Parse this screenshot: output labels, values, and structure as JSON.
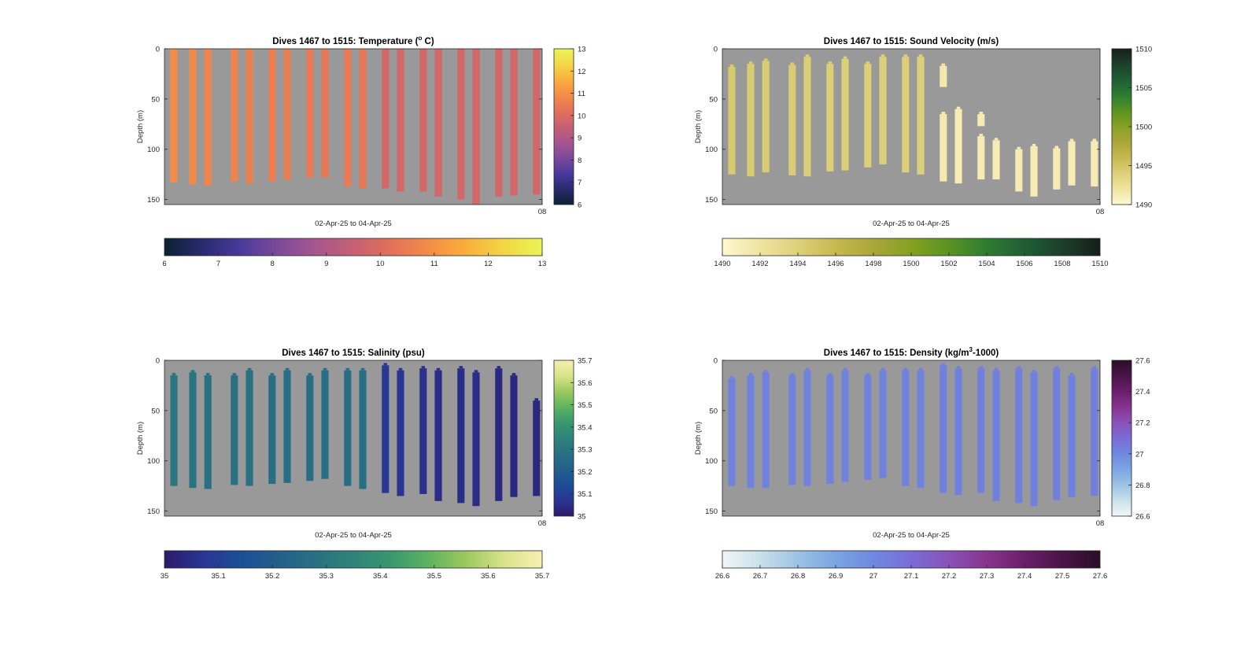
{
  "chart_data": [
    {
      "type": "heatmap",
      "title": "Dives 1467 to 1515: Temperature (",
      "title_sup": "o",
      "title_after": " C)",
      "xlabel": "02-Apr-25 to 04-Apr-25",
      "ylabel": "Depth (m)",
      "ylim": [
        0,
        155
      ],
      "yticks": [
        "0",
        "50",
        "100",
        "150"
      ],
      "xtick_label": "08",
      "clim": [
        6,
        13
      ],
      "colorbar_ticks": [
        "6",
        "7",
        "8",
        "9",
        "10",
        "11",
        "12",
        "13"
      ],
      "h_colorbar_ticks": [
        "6",
        "7",
        "8",
        "9",
        "10",
        "11",
        "12",
        "13"
      ],
      "colormap": [
        "#0b2233",
        "#2a2a6f",
        "#4a3a9c",
        "#7b4a9a",
        "#a8568f",
        "#c65f74",
        "#e3705a",
        "#f48c47",
        "#f9ae3c",
        "#f2d746",
        "#e9f457"
      ],
      "background": "#999999",
      "dives": [
        {
          "x": 0.025,
          "top": 0,
          "bottom": 133,
          "value": 10.9
        },
        {
          "x": 0.075,
          "top": 0,
          "bottom": 135,
          "value": 10.8
        },
        {
          "x": 0.115,
          "top": 0,
          "bottom": 136,
          "value": 10.75
        },
        {
          "x": 0.185,
          "top": 0,
          "bottom": 132,
          "value": 10.7
        },
        {
          "x": 0.225,
          "top": 0,
          "bottom": 134,
          "value": 10.6
        },
        {
          "x": 0.285,
          "top": 0,
          "bottom": 132,
          "value": 10.55
        },
        {
          "x": 0.325,
          "top": 0,
          "bottom": 130,
          "value": 10.5
        },
        {
          "x": 0.385,
          "top": 0,
          "bottom": 128,
          "value": 10.45
        },
        {
          "x": 0.425,
          "top": 0,
          "bottom": 128,
          "value": 10.4
        },
        {
          "x": 0.485,
          "top": 0,
          "bottom": 137,
          "value": 10.45
        },
        {
          "x": 0.525,
          "top": 0,
          "bottom": 139,
          "value": 10.4
        },
        {
          "x": 0.585,
          "top": 0,
          "bottom": 139,
          "value": 9.85
        },
        {
          "x": 0.625,
          "top": 0,
          "bottom": 142,
          "value": 9.85
        },
        {
          "x": 0.685,
          "top": 0,
          "bottom": 142,
          "value": 9.8
        },
        {
          "x": 0.725,
          "top": 0,
          "bottom": 147,
          "value": 9.8
        },
        {
          "x": 0.785,
          "top": 0,
          "bottom": 150,
          "value": 9.8
        },
        {
          "x": 0.825,
          "top": 0,
          "bottom": 155,
          "value": 9.8
        },
        {
          "x": 0.885,
          "top": 0,
          "bottom": 147,
          "value": 9.8
        },
        {
          "x": 0.925,
          "top": 0,
          "bottom": 146,
          "value": 9.8
        },
        {
          "x": 0.985,
          "top": 0,
          "bottom": 145,
          "value": 9.8
        }
      ]
    },
    {
      "type": "heatmap",
      "title": "Dives 1467 to 1515: Sound Velocity (m/s)",
      "xlabel": "02-Apr-25 to 04-Apr-25",
      "ylabel": "Depth (m)",
      "ylim": [
        0,
        155
      ],
      "yticks": [
        "0",
        "50",
        "100",
        "150"
      ],
      "xtick_label": "08",
      "clim": [
        1490,
        1510
      ],
      "colorbar_ticks": [
        "1490",
        "1495",
        "1500",
        "1505",
        "1510"
      ],
      "h_colorbar_ticks": [
        "1490",
        "1492",
        "1494",
        "1496",
        "1498",
        "1500",
        "1502",
        "1504",
        "1506",
        "1508",
        "1510"
      ],
      "colormap": [
        "#fdf8d2",
        "#efe39f",
        "#ddd07a",
        "#c8b84f",
        "#aaa63a",
        "#86a121",
        "#5a9322",
        "#2e7d32",
        "#1f5e34",
        "#1c402c",
        "#161f18"
      ],
      "background": "#999999",
      "dives": [
        {
          "x": 0.025,
          "top": 18,
          "bottom": 125,
          "value": 1494.5
        },
        {
          "x": 0.075,
          "top": 15,
          "bottom": 127,
          "value": 1494.4
        },
        {
          "x": 0.115,
          "top": 12,
          "bottom": 123,
          "value": 1494.4
        },
        {
          "x": 0.185,
          "top": 16,
          "bottom": 126,
          "value": 1494.3
        },
        {
          "x": 0.225,
          "top": 8,
          "bottom": 127,
          "value": 1494.2
        },
        {
          "x": 0.285,
          "top": 15,
          "bottom": 122,
          "value": 1494.2
        },
        {
          "x": 0.325,
          "top": 10,
          "bottom": 121,
          "value": 1494.1
        },
        {
          "x": 0.385,
          "top": 15,
          "bottom": 118,
          "value": 1494.1
        },
        {
          "x": 0.425,
          "top": 8,
          "bottom": 115,
          "value": 1494.0
        },
        {
          "x": 0.485,
          "top": 8,
          "bottom": 123,
          "value": 1494.1
        },
        {
          "x": 0.525,
          "top": 8,
          "bottom": 125,
          "value": 1494.0
        },
        {
          "x": 0.585,
          "top": 17,
          "bottom": 38,
          "value": 1491.5
        },
        {
          "x": 0.585,
          "top": 65,
          "bottom": 132,
          "value": 1491.3
        },
        {
          "x": 0.625,
          "top": 60,
          "bottom": 134,
          "value": 1491.2
        },
        {
          "x": 0.685,
          "top": 65,
          "bottom": 77,
          "value": 1491.2
        },
        {
          "x": 0.685,
          "top": 87,
          "bottom": 130,
          "value": 1491.2
        },
        {
          "x": 0.725,
          "top": 91,
          "bottom": 130,
          "value": 1491.2
        },
        {
          "x": 0.785,
          "top": 100,
          "bottom": 142,
          "value": 1491.2
        },
        {
          "x": 0.825,
          "top": 97,
          "bottom": 147,
          "value": 1491.2
        },
        {
          "x": 0.885,
          "top": 99,
          "bottom": 140,
          "value": 1491.2
        },
        {
          "x": 0.925,
          "top": 92,
          "bottom": 136,
          "value": 1491.2
        },
        {
          "x": 0.985,
          "top": 92,
          "bottom": 137,
          "value": 1491.2
        }
      ]
    },
    {
      "type": "heatmap",
      "title": "Dives 1467 to 1515: Salinity (psu)",
      "xlabel": "02-Apr-25 to 04-Apr-25",
      "ylabel": "Depth (m)",
      "ylim": [
        0,
        155
      ],
      "yticks": [
        "0",
        "50",
        "100",
        "150"
      ],
      "xtick_label": "08",
      "clim": [
        35,
        35.7
      ],
      "colorbar_ticks": [
        "35",
        "35.1",
        "35.2",
        "35.3",
        "35.4",
        "35.5",
        "35.6",
        "35.7"
      ],
      "h_colorbar_ticks": [
        "35",
        "35.1",
        "35.2",
        "35.3",
        "35.4",
        "35.5",
        "35.6",
        "35.7"
      ],
      "colormap": [
        "#2b1a6b",
        "#2a3593",
        "#1c4d96",
        "#245f8c",
        "#297083",
        "#2f837a",
        "#38986f",
        "#5eb361",
        "#9dc95e",
        "#d8e38a",
        "#f7efb0"
      ],
      "background": "#999999",
      "dives": [
        {
          "x": 0.025,
          "top": 15,
          "bottom": 125,
          "value": 35.3
        },
        {
          "x": 0.075,
          "top": 12,
          "bottom": 127,
          "value": 35.29
        },
        {
          "x": 0.115,
          "top": 15,
          "bottom": 128,
          "value": 35.28
        },
        {
          "x": 0.185,
          "top": 15,
          "bottom": 124,
          "value": 35.28
        },
        {
          "x": 0.225,
          "top": 10,
          "bottom": 125,
          "value": 35.28
        },
        {
          "x": 0.285,
          "top": 15,
          "bottom": 123,
          "value": 35.27
        },
        {
          "x": 0.325,
          "top": 10,
          "bottom": 122,
          "value": 35.27
        },
        {
          "x": 0.385,
          "top": 15,
          "bottom": 120,
          "value": 35.27
        },
        {
          "x": 0.425,
          "top": 10,
          "bottom": 118,
          "value": 35.27
        },
        {
          "x": 0.485,
          "top": 10,
          "bottom": 125,
          "value": 35.27
        },
        {
          "x": 0.525,
          "top": 10,
          "bottom": 128,
          "value": 35.27
        },
        {
          "x": 0.585,
          "top": 5,
          "bottom": 132,
          "value": 35.08
        },
        {
          "x": 0.625,
          "top": 10,
          "bottom": 135,
          "value": 35.07
        },
        {
          "x": 0.685,
          "top": 8,
          "bottom": 133,
          "value": 35.06
        },
        {
          "x": 0.725,
          "top": 10,
          "bottom": 140,
          "value": 35.05
        },
        {
          "x": 0.785,
          "top": 8,
          "bottom": 142,
          "value": 35.05
        },
        {
          "x": 0.825,
          "top": 12,
          "bottom": 145,
          "value": 35.05
        },
        {
          "x": 0.885,
          "top": 8,
          "bottom": 140,
          "value": 35.04
        },
        {
          "x": 0.925,
          "top": 15,
          "bottom": 136,
          "value": 35.04
        },
        {
          "x": 0.985,
          "top": 40,
          "bottom": 135,
          "value": 35.04
        }
      ]
    },
    {
      "type": "heatmap",
      "title": "Dives 1467 to 1515: Density (kg/m",
      "title_sup": "3",
      "title_after": "-1000)",
      "xlabel": "02-Apr-25 to 04-Apr-25",
      "ylabel": "Depth (m)",
      "ylim": [
        0,
        155
      ],
      "yticks": [
        "0",
        "50",
        "100",
        "150"
      ],
      "xtick_label": "08",
      "clim": [
        26.6,
        27.6
      ],
      "colorbar_ticks": [
        "26.6",
        "26.8",
        "27",
        "27.2",
        "27.4",
        "27.6"
      ],
      "h_colorbar_ticks": [
        "26.6",
        "26.7",
        "26.8",
        "26.9",
        "27",
        "27.1",
        "27.2",
        "27.3",
        "27.4",
        "27.5",
        "27.6"
      ],
      "colormap": [
        "#f0f6f7",
        "#c9e0ea",
        "#9cc3e4",
        "#7aa5e2",
        "#6f88e0",
        "#7a6cd7",
        "#8951b8",
        "#86348e",
        "#6b1f6a",
        "#4a1448",
        "#2a0e27"
      ],
      "background": "#999999",
      "dives": [
        {
          "x": 0.025,
          "top": 18,
          "bottom": 125,
          "value": 27.02
        },
        {
          "x": 0.075,
          "top": 15,
          "bottom": 127,
          "value": 27.02
        },
        {
          "x": 0.115,
          "top": 12,
          "bottom": 127,
          "value": 27.02
        },
        {
          "x": 0.185,
          "top": 15,
          "bottom": 124,
          "value": 27.02
        },
        {
          "x": 0.225,
          "top": 10,
          "bottom": 125,
          "value": 27.02
        },
        {
          "x": 0.285,
          "top": 15,
          "bottom": 123,
          "value": 27.02
        },
        {
          "x": 0.325,
          "top": 10,
          "bottom": 121,
          "value": 27.02
        },
        {
          "x": 0.385,
          "top": 15,
          "bottom": 119,
          "value": 27.02
        },
        {
          "x": 0.425,
          "top": 10,
          "bottom": 117,
          "value": 27.02
        },
        {
          "x": 0.485,
          "top": 10,
          "bottom": 125,
          "value": 27.02
        },
        {
          "x": 0.525,
          "top": 10,
          "bottom": 127,
          "value": 27.02
        },
        {
          "x": 0.585,
          "top": 5,
          "bottom": 132,
          "value": 27.03
        },
        {
          "x": 0.625,
          "top": 8,
          "bottom": 134,
          "value": 27.03
        },
        {
          "x": 0.685,
          "top": 8,
          "bottom": 132,
          "value": 27.03
        },
        {
          "x": 0.725,
          "top": 10,
          "bottom": 140,
          "value": 27.03
        },
        {
          "x": 0.785,
          "top": 8,
          "bottom": 142,
          "value": 27.03
        },
        {
          "x": 0.825,
          "top": 12,
          "bottom": 145,
          "value": 27.03
        },
        {
          "x": 0.885,
          "top": 8,
          "bottom": 139,
          "value": 27.03
        },
        {
          "x": 0.925,
          "top": 15,
          "bottom": 136,
          "value": 27.03
        },
        {
          "x": 0.985,
          "top": 8,
          "bottom": 135,
          "value": 27.03
        }
      ]
    }
  ]
}
